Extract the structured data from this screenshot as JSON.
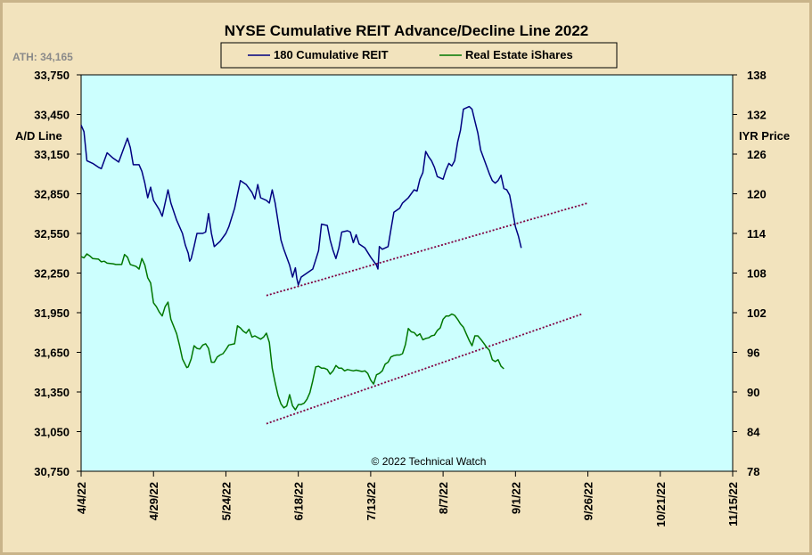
{
  "chart_data": {
    "type": "line",
    "title": "NYSE Cumulative  REIT Advance/Decline  Line 2022",
    "ath_label": "ATH: 34,165",
    "copyright": "© 2022 Technical  Watch",
    "left_axis": {
      "label": "A/D Line",
      "range": [
        30750,
        33750
      ],
      "ticks": [
        "30,750",
        "31,050",
        "31,350",
        "31,650",
        "31,950",
        "32,250",
        "32,550",
        "32,850",
        "33,150",
        "33,450",
        "33,750"
      ]
    },
    "right_axis": {
      "label": "IYR Price",
      "range": [
        78,
        138
      ],
      "ticks": [
        "78",
        "84",
        "90",
        "96",
        "102",
        "108",
        "114",
        "120",
        "126",
        "132",
        "138"
      ]
    },
    "x_axis": {
      "ticks": [
        "4/4/22",
        "4/29/22",
        "5/24/22",
        "6/18/22",
        "7/13/22",
        "8/7/22",
        "9/1/22",
        "9/26/22",
        "10/21/22",
        "11/15/22"
      ],
      "range_days": [
        0,
        225
      ]
    },
    "grid": false,
    "legend_position": "top-center",
    "colors": {
      "background": "#f2e3bd",
      "plot_background": "#ccfffe",
      "reit_line": "#000080",
      "iyr_line": "#007700",
      "trend_line": "#800040"
    },
    "series": [
      {
        "name": "180 Cumulative REIT",
        "axis": "left",
        "points": [
          [
            0,
            33370
          ],
          [
            1,
            33320
          ],
          [
            2,
            33100
          ],
          [
            4,
            33080
          ],
          [
            6,
            33050
          ],
          [
            7,
            33040
          ],
          [
            9,
            33160
          ],
          [
            11,
            33120
          ],
          [
            13,
            33090
          ],
          [
            15,
            33210
          ],
          [
            16,
            33270
          ],
          [
            17,
            33200
          ],
          [
            18,
            33070
          ],
          [
            20,
            33070
          ],
          [
            21,
            33020
          ],
          [
            22,
            32930
          ],
          [
            23,
            32820
          ],
          [
            24,
            32900
          ],
          [
            25,
            32800
          ],
          [
            27,
            32730
          ],
          [
            28,
            32680
          ],
          [
            30,
            32880
          ],
          [
            31,
            32780
          ],
          [
            33,
            32650
          ],
          [
            35,
            32550
          ],
          [
            36,
            32460
          ],
          [
            37,
            32400
          ],
          [
            37.5,
            32340
          ],
          [
            38,
            32360
          ],
          [
            39,
            32450
          ],
          [
            40,
            32550
          ],
          [
            42,
            32550
          ],
          [
            43,
            32560
          ],
          [
            44,
            32700
          ],
          [
            45,
            32550
          ],
          [
            46,
            32450
          ],
          [
            48,
            32490
          ],
          [
            50,
            32550
          ],
          [
            51,
            32600
          ],
          [
            53,
            32740
          ],
          [
            55,
            32950
          ],
          [
            57,
            32920
          ],
          [
            59,
            32860
          ],
          [
            60,
            32810
          ],
          [
            61,
            32920
          ],
          [
            62,
            32820
          ],
          [
            64,
            32800
          ],
          [
            65,
            32780
          ],
          [
            66,
            32880
          ],
          [
            67,
            32780
          ],
          [
            69,
            32500
          ],
          [
            70,
            32430
          ],
          [
            72,
            32310
          ],
          [
            73,
            32220
          ],
          [
            74,
            32290
          ],
          [
            74.5,
            32210
          ],
          [
            75,
            32160
          ],
          [
            76,
            32220
          ],
          [
            78,
            32250
          ],
          [
            80,
            32280
          ],
          [
            81,
            32350
          ],
          [
            82,
            32420
          ],
          [
            83,
            32620
          ],
          [
            85,
            32610
          ],
          [
            86,
            32500
          ],
          [
            87,
            32420
          ],
          [
            88,
            32360
          ],
          [
            89,
            32440
          ],
          [
            90,
            32560
          ],
          [
            92,
            32570
          ],
          [
            93,
            32560
          ],
          [
            94,
            32480
          ],
          [
            95,
            32540
          ],
          [
            96,
            32470
          ],
          [
            98,
            32440
          ],
          [
            100,
            32370
          ],
          [
            101,
            32340
          ],
          [
            102,
            32310
          ],
          [
            102.5,
            32280
          ],
          [
            103,
            32450
          ],
          [
            104,
            32430
          ],
          [
            106,
            32450
          ],
          [
            107,
            32580
          ],
          [
            108,
            32710
          ],
          [
            110,
            32740
          ],
          [
            111,
            32780
          ],
          [
            112,
            32800
          ],
          [
            113,
            32820
          ],
          [
            115,
            32880
          ],
          [
            116,
            32870
          ],
          [
            117,
            32960
          ],
          [
            118,
            33010
          ],
          [
            119,
            33170
          ],
          [
            120,
            33130
          ],
          [
            121,
            33100
          ],
          [
            122,
            33050
          ],
          [
            123,
            32980
          ],
          [
            125,
            32960
          ],
          [
            126,
            33030
          ],
          [
            127,
            33080
          ],
          [
            128,
            33060
          ],
          [
            129,
            33100
          ],
          [
            130,
            33240
          ],
          [
            131,
            33330
          ],
          [
            132,
            33490
          ],
          [
            134,
            33510
          ],
          [
            135,
            33490
          ],
          [
            136,
            33400
          ],
          [
            137,
            33310
          ],
          [
            138,
            33180
          ],
          [
            140,
            33060
          ],
          [
            141,
            33000
          ],
          [
            142,
            32950
          ],
          [
            143,
            32930
          ],
          [
            144,
            32950
          ],
          [
            145,
            32990
          ],
          [
            146,
            32890
          ],
          [
            147,
            32880
          ],
          [
            148,
            32840
          ],
          [
            149,
            32720
          ],
          [
            150,
            32600
          ],
          [
            151,
            32530
          ],
          [
            152,
            32440
          ]
        ]
      },
      {
        "name": "Real Estate iShares",
        "axis": "right",
        "points": [
          [
            0,
            110.5
          ],
          [
            1,
            110.3
          ],
          [
            2,
            110.9
          ],
          [
            3,
            110.6
          ],
          [
            4,
            110.2
          ],
          [
            6,
            110.1
          ],
          [
            7,
            109.7
          ],
          [
            8,
            109.8
          ],
          [
            9,
            109.5
          ],
          [
            11,
            109.4
          ],
          [
            12,
            109.3
          ],
          [
            14,
            109.3
          ],
          [
            15,
            110.8
          ],
          [
            16,
            110.4
          ],
          [
            17,
            109.3
          ],
          [
            19,
            109.0
          ],
          [
            20,
            108.6
          ],
          [
            21,
            110.2
          ],
          [
            22,
            109.2
          ],
          [
            23,
            107.3
          ],
          [
            24,
            106.5
          ],
          [
            25,
            103.5
          ],
          [
            26,
            102.9
          ],
          [
            27,
            102.1
          ],
          [
            28,
            101.5
          ],
          [
            29,
            102.9
          ],
          [
            30,
            103.6
          ],
          [
            31,
            101.0
          ],
          [
            33,
            98.8
          ],
          [
            34,
            97.0
          ],
          [
            35,
            95.0
          ],
          [
            36,
            94.1
          ],
          [
            36.5,
            93.7
          ],
          [
            37,
            93.8
          ],
          [
            38,
            95.0
          ],
          [
            39,
            97.0
          ],
          [
            40,
            96.6
          ],
          [
            41,
            96.5
          ],
          [
            42,
            97.1
          ],
          [
            43,
            97.3
          ],
          [
            44,
            96.6
          ],
          [
            45,
            94.5
          ],
          [
            46,
            94.5
          ],
          [
            47,
            95.3
          ],
          [
            48,
            95.6
          ],
          [
            49,
            95.8
          ],
          [
            50,
            96.4
          ],
          [
            51,
            97.1
          ],
          [
            53,
            97.3
          ],
          [
            54,
            100.0
          ],
          [
            55,
            99.7
          ],
          [
            56,
            99.2
          ],
          [
            57,
            98.9
          ],
          [
            58,
            99.5
          ],
          [
            59,
            98.3
          ],
          [
            60,
            98.5
          ],
          [
            62,
            98.0
          ],
          [
            63,
            98.3
          ],
          [
            64,
            98.9
          ],
          [
            65,
            97.5
          ],
          [
            66,
            93.6
          ],
          [
            67,
            91.4
          ],
          [
            68,
            89.5
          ],
          [
            69,
            88.2
          ],
          [
            70,
            87.6
          ],
          [
            71,
            87.9
          ],
          [
            72,
            89.6
          ],
          [
            73,
            87.9
          ],
          [
            74,
            87.3
          ],
          [
            75,
            88.1
          ],
          [
            76,
            88.1
          ],
          [
            77,
            88.3
          ],
          [
            78,
            88.9
          ],
          [
            79,
            89.9
          ],
          [
            80,
            91.7
          ],
          [
            81,
            93.8
          ],
          [
            82,
            93.9
          ],
          [
            83,
            93.6
          ],
          [
            84,
            93.6
          ],
          [
            85,
            93.4
          ],
          [
            86,
            92.7
          ],
          [
            87,
            93.2
          ],
          [
            88,
            94.0
          ],
          [
            89,
            93.6
          ],
          [
            90,
            93.6
          ],
          [
            91,
            93.2
          ],
          [
            92,
            93.4
          ],
          [
            94,
            93.2
          ],
          [
            95,
            93.3
          ],
          [
            97,
            93.1
          ],
          [
            98,
            93.2
          ],
          [
            99,
            92.8
          ],
          [
            100,
            91.8
          ],
          [
            101,
            91.2
          ],
          [
            102,
            92.6
          ],
          [
            103,
            92.8
          ],
          [
            104,
            93.2
          ],
          [
            105,
            94.2
          ],
          [
            106,
            94.5
          ],
          [
            107,
            95.3
          ],
          [
            108,
            95.5
          ],
          [
            109,
            95.6
          ],
          [
            110,
            95.6
          ],
          [
            111,
            95.8
          ],
          [
            112,
            97.2
          ],
          [
            113,
            99.6
          ],
          [
            114,
            99.1
          ],
          [
            115,
            99.0
          ],
          [
            116,
            98.5
          ],
          [
            117,
            98.8
          ],
          [
            118,
            97.9
          ],
          [
            119,
            98.1
          ],
          [
            120,
            98.2
          ],
          [
            121,
            98.5
          ],
          [
            122,
            98.6
          ],
          [
            123,
            99.3
          ],
          [
            124,
            99.7
          ],
          [
            125,
            101.0
          ],
          [
            126,
            101.5
          ],
          [
            127,
            101.5
          ],
          [
            128,
            101.8
          ],
          [
            129,
            101.6
          ],
          [
            130,
            101.0
          ],
          [
            131,
            100.3
          ],
          [
            132,
            99.8
          ],
          [
            133,
            98.8
          ],
          [
            134,
            97.8
          ],
          [
            135,
            97.0
          ],
          [
            136,
            98.5
          ],
          [
            137,
            98.5
          ],
          [
            138,
            98.0
          ],
          [
            139,
            97.4
          ],
          [
            140,
            96.8
          ],
          [
            141,
            96.3
          ],
          [
            142,
            94.9
          ],
          [
            143,
            94.6
          ],
          [
            144,
            94.9
          ],
          [
            145,
            93.9
          ],
          [
            146,
            93.5
          ]
        ]
      }
    ],
    "trend_lines": [
      {
        "axis": "left",
        "from": [
          64,
          32080
        ],
        "to": [
          175,
          32780
        ]
      },
      {
        "axis": "left",
        "from": [
          64,
          31110
        ],
        "to": [
          173,
          31940
        ]
      }
    ]
  }
}
